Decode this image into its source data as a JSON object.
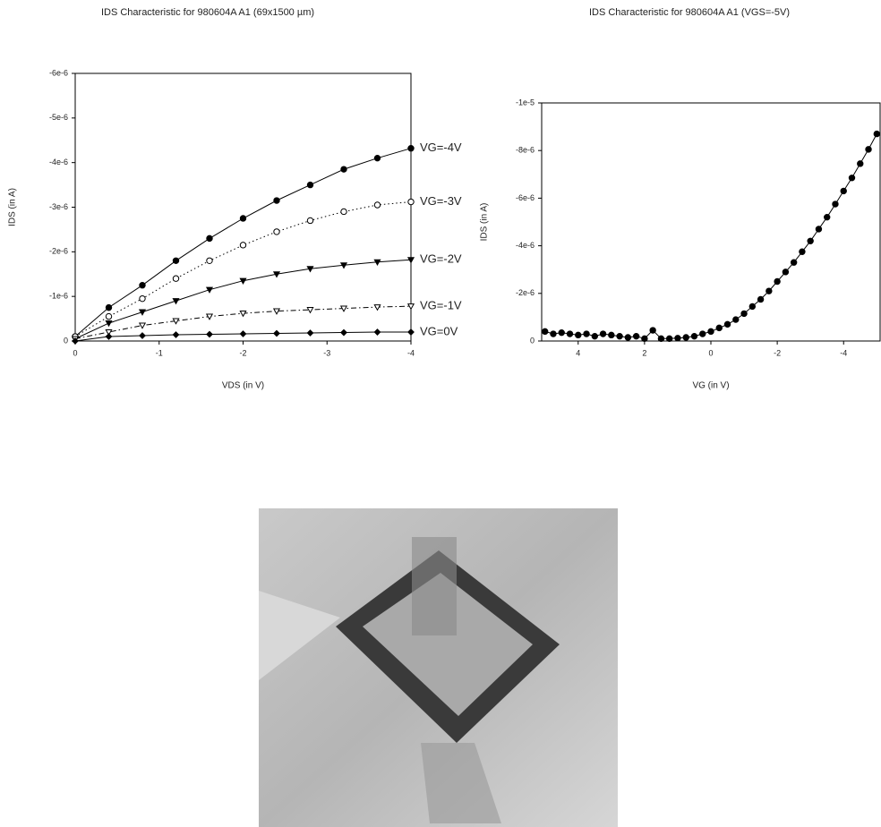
{
  "chart_data": [
    {
      "type": "line",
      "title": "IDS Characteristic for 980604A A1 (69x1500 µm)",
      "xlabel": "VDS (in V)",
      "ylabel": "IDS (in A)",
      "x": [
        0,
        -0.4,
        -0.8,
        -1.2,
        -1.6,
        -2.0,
        -2.4,
        -2.8,
        -3.2,
        -3.6,
        -4.0
      ],
      "xlim": [
        0,
        -4
      ],
      "xticks": [
        0,
        -1,
        -2,
        -3,
        -4
      ],
      "ylim": [
        0,
        -6e-06
      ],
      "yticks": [
        0,
        {
          "value": -1e-06,
          "label": "-1e-6"
        },
        {
          "value": -2e-06,
          "label": "-2e-6"
        },
        {
          "value": -3e-06,
          "label": "-3e-6"
        },
        {
          "value": -4e-06,
          "label": "-4e-6"
        },
        {
          "value": -5e-06,
          "label": "-5e-6"
        },
        {
          "value": -6e-06,
          "label": "-6e-6"
        }
      ],
      "series": [
        {
          "name": "VG=-4V",
          "color": "#000000",
          "marker": "circle",
          "dash": "solid",
          "values": [
            -1e-07,
            -7.5e-07,
            -1.25e-06,
            -1.8e-06,
            -2.3e-06,
            -2.75e-06,
            -3.15e-06,
            -3.5e-06,
            -3.85e-06,
            -4.1e-06,
            -4.32e-06
          ]
        },
        {
          "name": "VG=-3V",
          "color": "#000000",
          "marker": "open-circle",
          "dash": "dotted",
          "values": [
            -1e-07,
            -5.5e-07,
            -9.5e-07,
            -1.4e-06,
            -1.8e-06,
            -2.15e-06,
            -2.45e-06,
            -2.7e-06,
            -2.9e-06,
            -3.05e-06,
            -3.12e-06
          ]
        },
        {
          "name": "VG=-2V",
          "color": "#000000",
          "marker": "triangle",
          "dash": "solid",
          "values": [
            -5e-08,
            -4e-07,
            -6.5e-07,
            -9e-07,
            -1.15e-06,
            -1.35e-06,
            -1.5e-06,
            -1.62e-06,
            -1.7e-06,
            -1.77e-06,
            -1.82e-06
          ]
        },
        {
          "name": "VG=-1V",
          "color": "#000000",
          "marker": "open-triangle",
          "dash": "dashdot",
          "values": [
            -5e-08,
            -2e-07,
            -3.5e-07,
            -4.5e-07,
            -5.5e-07,
            -6.2e-07,
            -6.7e-07,
            -7e-07,
            -7.3e-07,
            -7.6e-07,
            -7.8e-07
          ]
        },
        {
          "name": "VG=0V",
          "color": "#000000",
          "marker": "diamond",
          "dash": "solid",
          "values": [
            0,
            -1e-07,
            -1.2e-07,
            -1.4e-07,
            -1.5e-07,
            -1.6e-07,
            -1.7e-07,
            -1.8e-07,
            -1.9e-07,
            -2e-07,
            -2e-07
          ]
        }
      ]
    },
    {
      "type": "line",
      "title": "IDS Characteristic for 980604A A1 (VGS=-5V)",
      "xlabel": "VG (in V)",
      "ylabel": "IDS (in A)",
      "x": [
        5,
        4.75,
        4.5,
        4.25,
        4,
        3.75,
        3.5,
        3.25,
        3,
        2.75,
        2.5,
        2.25,
        2,
        1.75,
        1.5,
        1.25,
        1,
        0.75,
        0.5,
        0.25,
        0,
        -0.25,
        -0.5,
        -0.75,
        -1,
        -1.25,
        -1.5,
        -1.75,
        -2,
        -2.25,
        -2.5,
        -2.75,
        -3,
        -3.25,
        -3.5,
        -3.75,
        -4,
        -4.25,
        -4.5,
        -4.75,
        -5
      ],
      "xlim": [
        5.1,
        -5.1
      ],
      "xticks": [
        4,
        2,
        0,
        -2,
        -4
      ],
      "ylim": [
        0,
        -1e-05
      ],
      "yticks": [
        0,
        {
          "value": -2e-06,
          "label": "-2e-6"
        },
        {
          "value": -4e-06,
          "label": "-4e-6"
        },
        {
          "value": -6e-06,
          "label": "-6e-6"
        },
        {
          "value": -8e-06,
          "label": "-8e-6"
        },
        {
          "value": -1e-05,
          "label": "-1e-5"
        }
      ],
      "series": [
        {
          "color": "#000000",
          "marker": "circle",
          "dash": "solid",
          "values": [
            -4e-07,
            -3e-07,
            -3.5e-07,
            -3e-07,
            -2.5e-07,
            -3e-07,
            -2e-07,
            -3e-07,
            -2.5e-07,
            -2e-07,
            -1.5e-07,
            -2e-07,
            -1e-07,
            -4.5e-07,
            -1e-07,
            -1e-07,
            -1.2e-07,
            -1.5e-07,
            -2e-07,
            -3e-07,
            -4e-07,
            -5.5e-07,
            -7e-07,
            -9e-07,
            -1.15e-06,
            -1.45e-06,
            -1.75e-06,
            -2.1e-06,
            -2.5e-06,
            -2.9e-06,
            -3.3e-06,
            -3.75e-06,
            -4.2e-06,
            -4.7e-06,
            -5.2e-06,
            -5.75e-06,
            -6.3e-06,
            -6.85e-06,
            -7.45e-06,
            -8.05e-06,
            -8.7e-06
          ]
        }
      ]
    }
  ]
}
